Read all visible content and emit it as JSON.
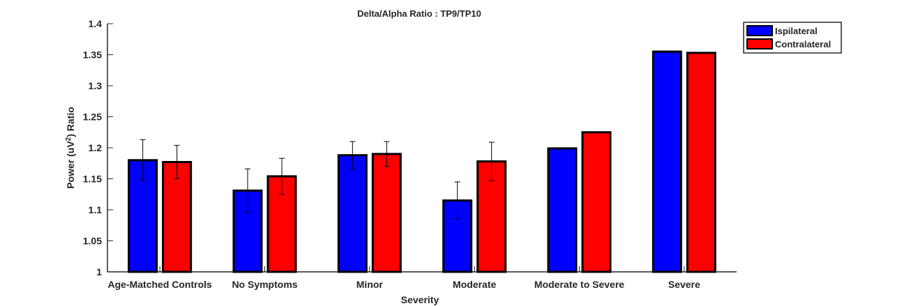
{
  "chart_data": {
    "type": "bar",
    "title": "Delta/Alpha Ratio :  TP9/TP10",
    "xlabel": "Severity",
    "ylabel_main": "Power (uV",
    "ylabel_sup": "2",
    "ylabel_tail": ") Ratio",
    "ylim": [
      1,
      1.4
    ],
    "yticks": [
      1,
      1.05,
      1.1,
      1.15,
      1.2,
      1.25,
      1.3,
      1.35,
      1.4
    ],
    "ytick_labels": [
      "1",
      "1.05",
      "1.1",
      "1.15",
      "1.2",
      "1.25",
      "1.3",
      "1.35",
      "1.4"
    ],
    "categories": [
      "Age-Matched Controls",
      "No Symptoms",
      "Minor",
      "Moderate",
      "Moderate to Severe",
      "Severe"
    ],
    "series": [
      {
        "name": "Ispilateral",
        "color": "#0000ff",
        "values": [
          1.18,
          1.131,
          1.188,
          1.115,
          1.199,
          1.355
        ],
        "errors": [
          0.033,
          0.035,
          0.022,
          0.03,
          null,
          null
        ]
      },
      {
        "name": "Contralateral",
        "color": "#ff0000",
        "values": [
          1.177,
          1.154,
          1.19,
          1.178,
          1.225,
          1.353
        ],
        "errors": [
          0.027,
          0.029,
          0.02,
          0.031,
          null,
          null
        ]
      }
    ],
    "legend_position": "top-right",
    "grid": false
  }
}
